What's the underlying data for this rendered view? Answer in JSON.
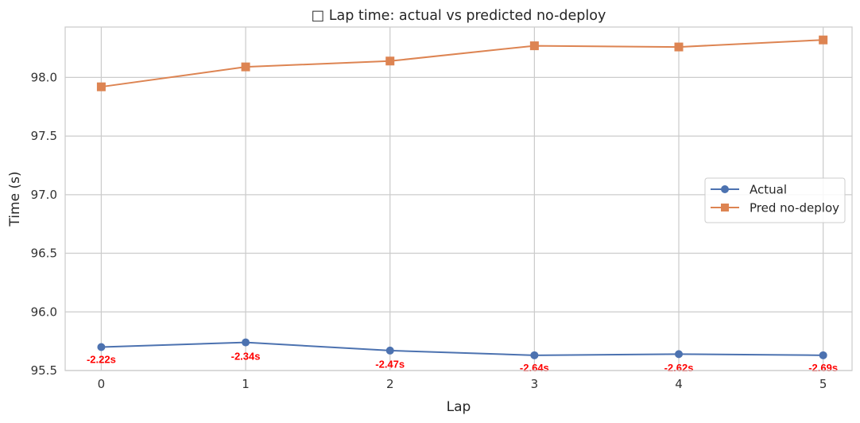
{
  "chart_data": {
    "type": "line",
    "title": "□ Lap time: actual vs predicted no-deploy",
    "xlabel": "Lap",
    "ylabel": "Time (s)",
    "x": [
      0,
      1,
      2,
      3,
      4,
      5
    ],
    "x_ticks": [
      "0",
      "1",
      "2",
      "3",
      "4",
      "5"
    ],
    "y_ticks": [
      "95.5",
      "96.0",
      "96.5",
      "97.0",
      "97.5",
      "98.0"
    ],
    "xlim": [
      -0.25,
      5.2
    ],
    "ylim": [
      95.5,
      98.43
    ],
    "grid": true,
    "legend_position": "center-right",
    "series": [
      {
        "name": "Actual",
        "marker": "circle",
        "color": "#4c72b0",
        "values": [
          95.7,
          95.74,
          95.67,
          95.63,
          95.64,
          95.63
        ]
      },
      {
        "name": "Pred no-deploy",
        "marker": "square",
        "color": "#dd8452",
        "values": [
          97.92,
          98.09,
          98.14,
          98.27,
          98.26,
          98.32
        ]
      }
    ],
    "annotations": {
      "color": "#ff0000",
      "values": [
        95.59,
        95.62,
        95.55,
        95.52,
        95.52,
        95.52
      ],
      "labels": [
        "-2.22s",
        "-2.34s",
        "-2.47s",
        "-2.64s",
        "-2.62s",
        "-2.69s"
      ]
    }
  }
}
